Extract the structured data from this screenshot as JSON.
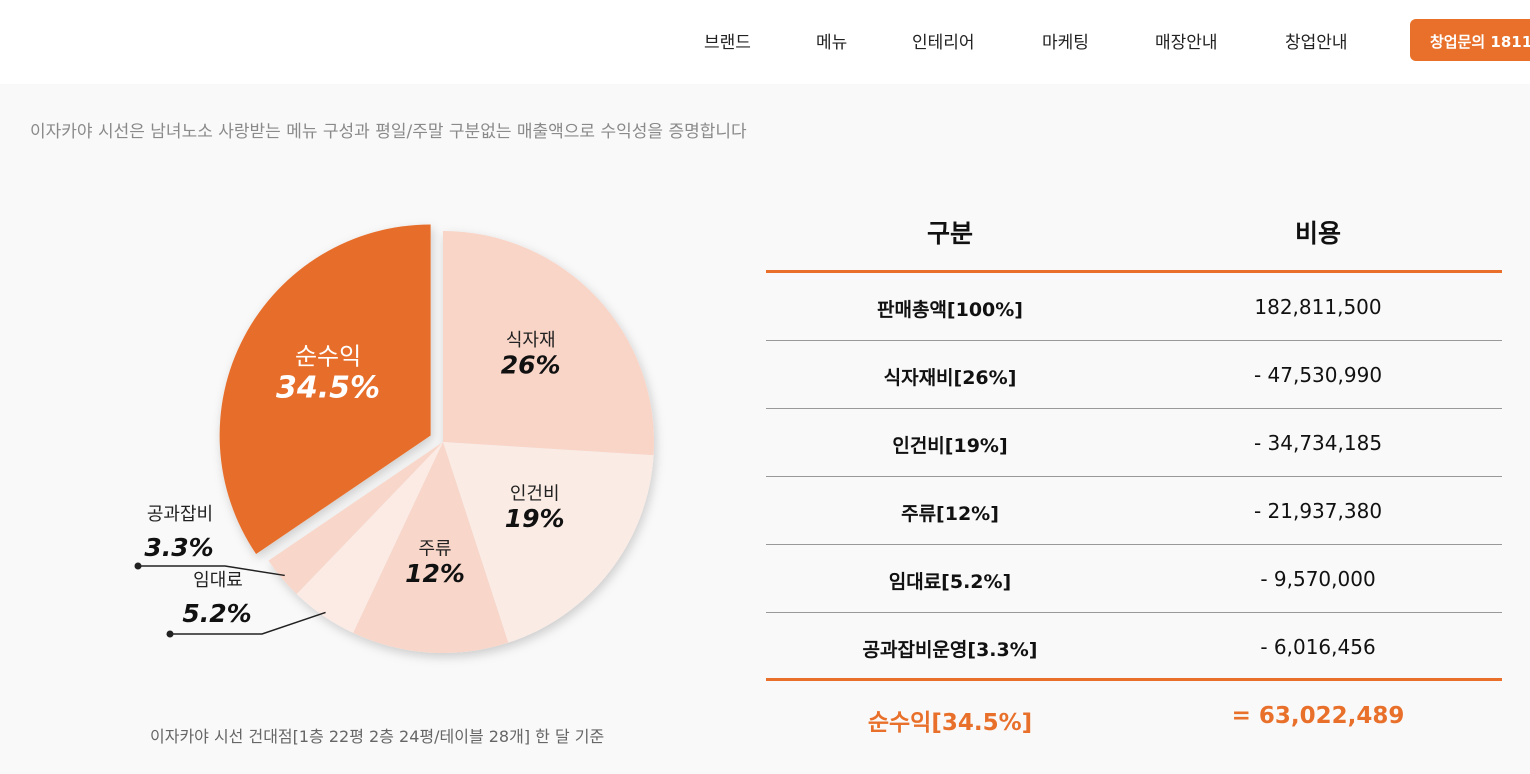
{
  "nav": {
    "items": [
      {
        "label": "브랜드"
      },
      {
        "label": "메뉴"
      },
      {
        "label": "인테리어"
      },
      {
        "label": "마케팅"
      },
      {
        "label": "매장안내"
      },
      {
        "label": "창업안내"
      }
    ],
    "cta_label": "창업문의 1811",
    "cta_color": "#e8702a"
  },
  "intro_text": "이자카야 시선은 남녀노소 사랑받는 메뉴 구성과 평일/주말 구분없는 매출액으로 수익성을 증명합니다",
  "chart_data": {
    "type": "pie",
    "slices": [
      {
        "label": "순수익",
        "value": 34.5,
        "display": "34.5%",
        "color": "#e76e29",
        "exploded": true
      },
      {
        "label": "식자재",
        "value": 26,
        "display": "26%",
        "color": "#f9d5c8"
      },
      {
        "label": "인건비",
        "value": 19,
        "display": "19%",
        "color": "#fbebe5"
      },
      {
        "label": "주류",
        "value": 12,
        "display": "12%",
        "color": "#f8d6c9"
      },
      {
        "label": "임대료",
        "value": 5.2,
        "display": "5.2%",
        "color": "#fcebe5"
      },
      {
        "label": "공과잡비",
        "value": 3.3,
        "display": "3.3%",
        "color": "#f8d6c9"
      }
    ]
  },
  "caption": "이자카야 시선 건대점[1층 22평 2층 24평/테이블 28개] 한 달 기준",
  "table": {
    "headers": [
      "구분",
      "비용"
    ],
    "rows": [
      {
        "label": "판매총액[100%]",
        "amount": "182,811,500"
      },
      {
        "label": "식자재비[26%]",
        "amount": "-  47,530,990"
      },
      {
        "label": "인건비[19%]",
        "amount": "-  34,734,185"
      },
      {
        "label": "주류[12%]",
        "amount": "-  21,937,380"
      },
      {
        "label": "임대료[5.2%]",
        "amount": "-  9,570,000"
      },
      {
        "label": "공과잡비운영[3.3%]",
        "amount": "-  6,016,456"
      }
    ],
    "total": {
      "label": "순수익[34.5%]",
      "amount": "=  63,022,489"
    },
    "accent_color": "#e8702a"
  }
}
